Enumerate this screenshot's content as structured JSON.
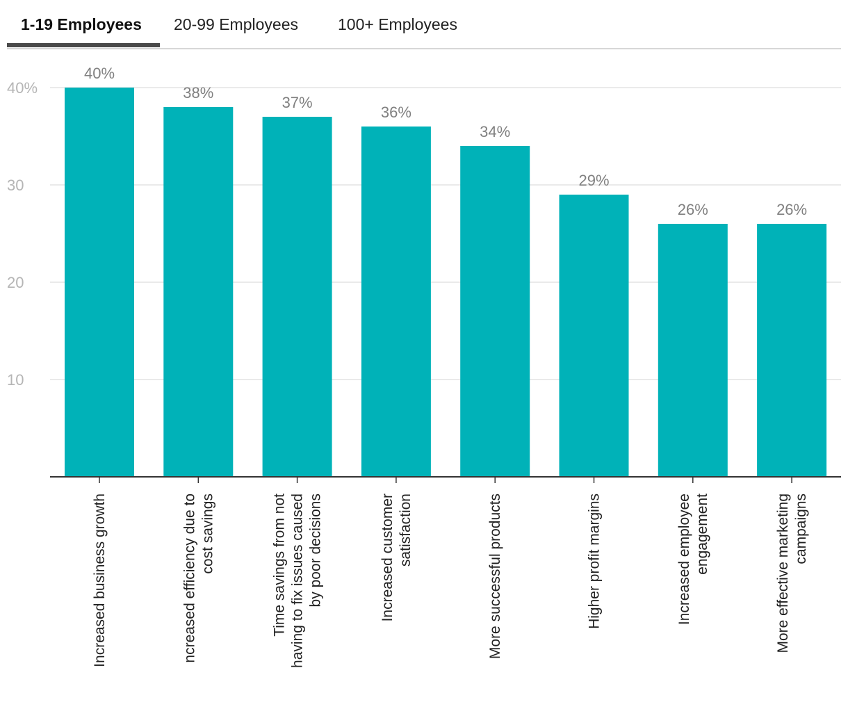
{
  "tabs": [
    {
      "label": "1-19 Employees",
      "active": true
    },
    {
      "label": "20-99 Employees",
      "active": false
    },
    {
      "label": "100+ Employees",
      "active": false
    }
  ],
  "colors": {
    "bar": "#00b2b8",
    "grid": "#e3e3e3",
    "tick_text": "#b5b5b5",
    "value_text": "#808080",
    "axis": "#333333",
    "category_text": "#222222"
  },
  "chart_data": {
    "type": "bar",
    "title": "",
    "xlabel": "",
    "ylabel": "",
    "ylim": [
      0,
      40
    ],
    "yticks": [
      {
        "value": 10,
        "label": "10"
      },
      {
        "value": 20,
        "label": "20"
      },
      {
        "value": 30,
        "label": "30"
      },
      {
        "value": 40,
        "label": "40%"
      }
    ],
    "categories": [
      [
        "Increased business growth"
      ],
      [
        "ncreased efficiency due to",
        "cost savings"
      ],
      [
        "Time savings from not",
        "having to fix issues caused",
        "by poor decisions"
      ],
      [
        "Increased customer",
        "satisfaction"
      ],
      [
        "More successful products"
      ],
      [
        "Higher profit margins"
      ],
      [
        "Increased employee",
        "engagement"
      ],
      [
        "More effective marketing",
        "campaigns"
      ]
    ],
    "values": [
      40,
      38,
      37,
      36,
      34,
      29,
      26,
      26
    ],
    "value_labels": [
      "40%",
      "38%",
      "37%",
      "36%",
      "34%",
      "29%",
      "26%",
      "26%"
    ]
  }
}
